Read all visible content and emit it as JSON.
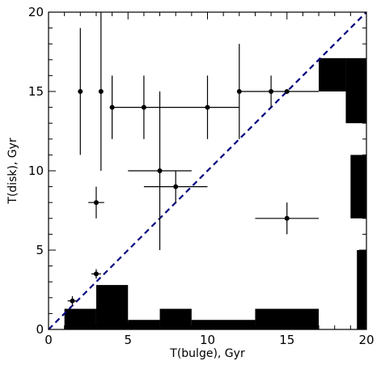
{
  "chart_data": {
    "type": "scatter",
    "xlabel": "T(bulge), Gyr",
    "ylabel": "T(disk), Gyr",
    "xlim": [
      0,
      20
    ],
    "ylim": [
      0,
      20
    ],
    "xticks": [
      0,
      5,
      10,
      15,
      20
    ],
    "yticks": [
      0,
      5,
      10,
      15,
      20
    ],
    "x_minor_step": 1,
    "y_minor_step": 1,
    "grid": false,
    "colors": {
      "points": "#000000",
      "diagonal": "#000080",
      "filled_regions": "#000000"
    },
    "diagonal_line": {
      "style": "dashed",
      "from": [
        0,
        0
      ],
      "to": [
        20,
        20
      ]
    },
    "points": [
      {
        "x": 2.0,
        "y": 15.0,
        "xerr": [
          0.0,
          0.0
        ],
        "yerr": [
          4.0,
          4.0
        ]
      },
      {
        "x": 3.3,
        "y": 15.0,
        "xerr": [
          0.0,
          0.0
        ],
        "yerr": [
          5.0,
          5.0
        ]
      },
      {
        "x": 4.0,
        "y": 14.0,
        "xerr": [
          0.0,
          0.0
        ],
        "yerr": [
          2.0,
          2.0
        ]
      },
      {
        "x": 6.0,
        "y": 14.0,
        "xerr": [
          0.0,
          0.0
        ],
        "yerr": [
          2.0,
          2.0
        ]
      },
      {
        "x": 10.0,
        "y": 14.0,
        "xerr": [
          6.0,
          2.0
        ],
        "yerr": [
          2.0,
          2.0
        ]
      },
      {
        "x": 12.0,
        "y": 15.0,
        "xerr": [
          0.0,
          0.0
        ],
        "yerr": [
          3.0,
          3.0
        ]
      },
      {
        "x": 14.0,
        "y": 15.0,
        "xerr": [
          0.0,
          0.0
        ],
        "yerr": [
          1.0,
          1.0
        ]
      },
      {
        "x": 15.0,
        "y": 15.0,
        "xerr": [
          3.0,
          2.0
        ],
        "yerr": [
          0.0,
          0.0
        ]
      },
      {
        "x": 7.0,
        "y": 10.0,
        "xerr": [
          2.0,
          2.0
        ],
        "yerr": [
          5.0,
          5.0
        ]
      },
      {
        "x": 8.0,
        "y": 9.0,
        "xerr": [
          2.0,
          2.0
        ],
        "yerr": [
          1.0,
          1.0
        ]
      },
      {
        "x": 3.0,
        "y": 8.0,
        "xerr": [
          0.5,
          0.5
        ],
        "yerr": [
          1.0,
          1.0
        ]
      },
      {
        "x": 15.0,
        "y": 7.0,
        "xerr": [
          2.0,
          2.0
        ],
        "yerr": [
          1.0,
          1.0
        ]
      },
      {
        "x": 3.0,
        "y": 3.5,
        "xerr": [
          0.3,
          0.3
        ],
        "yerr": [
          0.3,
          0.3
        ]
      },
      {
        "x": 1.5,
        "y": 1.8,
        "xerr": [
          0.3,
          0.3
        ],
        "yerr": [
          0.3,
          0.3
        ]
      }
    ],
    "filled_regions": [
      {
        "x0": 1,
        "x1": 3,
        "y0": 0,
        "y1": 1.3
      },
      {
        "x0": 3,
        "x1": 5,
        "y0": 0,
        "y1": 2.8
      },
      {
        "x0": 5,
        "x1": 7,
        "y0": 0,
        "y1": 0.6
      },
      {
        "x0": 7,
        "x1": 9,
        "y0": 0,
        "y1": 1.3
      },
      {
        "x0": 9,
        "x1": 13,
        "y0": 0,
        "y1": 0.6
      },
      {
        "x0": 13,
        "x1": 17,
        "y0": 0,
        "y1": 1.3
      },
      {
        "x0": 17,
        "x1": 18.7,
        "y0": 15,
        "y1": 17.1
      },
      {
        "x0": 18.7,
        "x1": 20,
        "y0": 13,
        "y1": 17.1
      },
      {
        "x0": 19.0,
        "x1": 20,
        "y0": 7,
        "y1": 11
      },
      {
        "x0": 19.4,
        "x1": 20,
        "y0": 0,
        "y1": 5
      }
    ]
  }
}
